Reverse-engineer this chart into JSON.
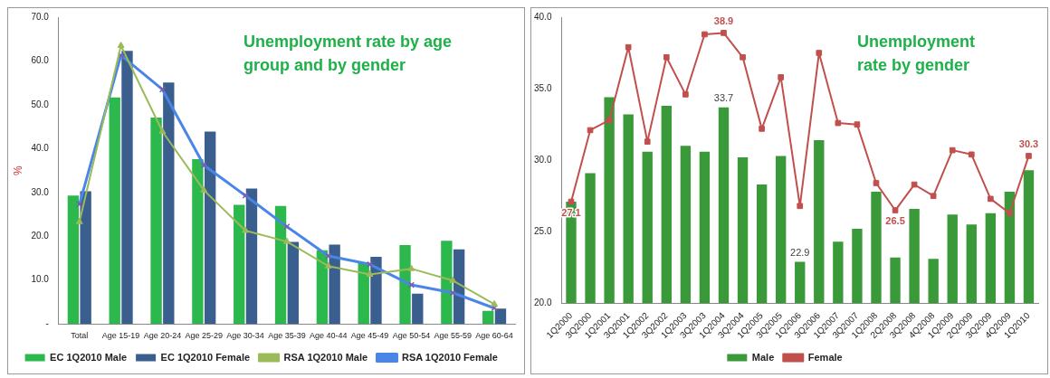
{
  "chart_data": [
    {
      "type": "bar",
      "title": "Unemployment rate by age group and by gender",
      "ylabel": "%",
      "categories": [
        "Total",
        "Age 15-19",
        "Age 20-24",
        "Age 25-29",
        "Age 30-34",
        "Age 35-39",
        "Age 40-44",
        "Age 45-49",
        "Age 50-54",
        "Age 55-59",
        "Age 60-64"
      ],
      "series": [
        {
          "name": "EC 1Q2010 Male",
          "color": "#2db84d",
          "values": [
            29.3,
            51.7,
            47.1,
            37.6,
            27.2,
            26.9,
            16.8,
            14.0,
            18.0,
            19.0,
            3.0
          ]
        },
        {
          "name": "EC 1Q2010 Female",
          "color": "#3a5f8f",
          "values": [
            30.3,
            62.3,
            55.1,
            43.9,
            30.9,
            18.7,
            18.1,
            15.3,
            6.9,
            17.0,
            3.5
          ]
        },
        {
          "name": "RSA 1Q2010 Male",
          "type": "line",
          "color": "#9bbb59",
          "marker": "triangle",
          "values": [
            23.3,
            63.5,
            43.9,
            30.5,
            21.3,
            18.8,
            13.2,
            11.3,
            12.6,
            9.9,
            4.5
          ]
        },
        {
          "name": "RSA 1Q2010 Female",
          "type": "line",
          "color": "#4a86e8",
          "marker": "cross",
          "values": [
            27.3,
            61.3,
            53.5,
            36.2,
            29.3,
            22.2,
            15.5,
            13.6,
            8.9,
            7.1,
            3.6
          ]
        }
      ],
      "ylim": [
        0,
        70
      ],
      "yticks": [
        {
          "value": 0,
          "label": "-"
        },
        {
          "value": 10,
          "label": "10.0"
        },
        {
          "value": 20,
          "label": "20.0"
        },
        {
          "value": 30,
          "label": "30.0"
        },
        {
          "value": 40,
          "label": "40.0"
        },
        {
          "value": 50,
          "label": "50.0"
        },
        {
          "value": 60,
          "label": "60.0"
        },
        {
          "value": 70,
          "label": "70.0"
        }
      ],
      "grid": false,
      "legend": "bottom"
    },
    {
      "type": "bar",
      "title": "Unemployment rate by gender",
      "categories": [
        "1Q2000",
        "3Q2000",
        "1Q2001",
        "3Q2001",
        "1Q2002",
        "3Q2002",
        "1Q2003",
        "3Q2003",
        "1Q2004",
        "3Q2004",
        "1Q2005",
        "3Q2005",
        "1Q2006",
        "3Q2006",
        "1Q2007",
        "3Q2007",
        "1Q2008",
        "2Q2008",
        "3Q2008",
        "4Q2008",
        "1Q2009",
        "2Q2009",
        "3Q2009",
        "4Q2009",
        "1Q2010"
      ],
      "series": [
        {
          "name": "Male",
          "color": "#3a9a3a",
          "values": [
            27.1,
            29.1,
            34.4,
            33.2,
            30.6,
            33.8,
            31.0,
            30.6,
            33.7,
            30.2,
            28.3,
            30.3,
            22.9,
            31.4,
            24.3,
            25.2,
            27.8,
            23.2,
            26.6,
            23.1,
            26.2,
            25.5,
            26.3,
            27.8,
            29.3
          ],
          "value_labels": [
            null,
            null,
            null,
            null,
            null,
            null,
            null,
            null,
            "33.7",
            null,
            null,
            null,
            "22.9",
            null,
            null,
            null,
            null,
            null,
            null,
            null,
            null,
            null,
            null,
            null,
            null
          ]
        },
        {
          "name": "Female",
          "type": "line",
          "color": "#c0504d",
          "marker": "square",
          "values": [
            27.1,
            32.1,
            32.8,
            37.9,
            31.3,
            37.2,
            34.6,
            38.8,
            38.9,
            37.2,
            32.2,
            35.8,
            26.8,
            37.5,
            32.6,
            32.5,
            28.4,
            26.5,
            28.3,
            27.5,
            30.7,
            30.4,
            27.3,
            26.3,
            30.3
          ],
          "value_labels": [
            "27.1",
            null,
            null,
            null,
            null,
            null,
            null,
            null,
            "38.9",
            null,
            null,
            null,
            null,
            null,
            null,
            null,
            null,
            "26.5",
            null,
            null,
            null,
            null,
            null,
            null,
            "30.3"
          ]
        }
      ],
      "ylim": [
        20,
        40
      ],
      "yticks": [
        {
          "value": 20,
          "label": "20.0"
        },
        {
          "value": 25,
          "label": "25.0"
        },
        {
          "value": 30,
          "label": "30.0"
        },
        {
          "value": 35,
          "label": "35.0"
        },
        {
          "value": 40,
          "label": "40.0"
        }
      ],
      "grid": false,
      "legend": "bottom"
    }
  ]
}
